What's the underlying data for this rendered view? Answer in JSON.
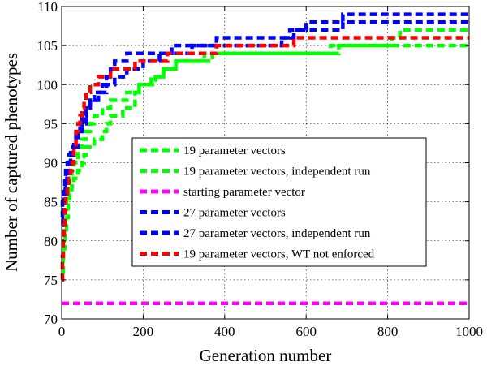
{
  "chart_data": {
    "type": "line",
    "title": "",
    "xlabel": "Generation number",
    "ylabel": "Number of captured phenotypes",
    "xlim": [
      0,
      1000
    ],
    "ylim": [
      70,
      110
    ],
    "xticks": [
      0,
      200,
      400,
      600,
      800,
      1000
    ],
    "yticks": [
      70,
      75,
      80,
      85,
      90,
      95,
      100,
      105,
      110
    ],
    "grid": true,
    "legend_position": "center-right",
    "series": [
      {
        "name": "19 parameter vectors",
        "color": "#00ff00",
        "points": [
          [
            0,
            78
          ],
          [
            3,
            80
          ],
          [
            6,
            82
          ],
          [
            9,
            84
          ],
          [
            12,
            86
          ],
          [
            16,
            87
          ],
          [
            20,
            88
          ],
          [
            25,
            89
          ],
          [
            30,
            90
          ],
          [
            40,
            92
          ],
          [
            50,
            93
          ],
          [
            60,
            94
          ],
          [
            70,
            95
          ],
          [
            80,
            96
          ],
          [
            100,
            97
          ],
          [
            120,
            98
          ],
          [
            140,
            98
          ],
          [
            160,
            99
          ],
          [
            190,
            100
          ],
          [
            220,
            101
          ],
          [
            250,
            102
          ],
          [
            280,
            103
          ],
          [
            320,
            103
          ],
          [
            350,
            104
          ],
          [
            400,
            104
          ],
          [
            500,
            104
          ],
          [
            600,
            104
          ],
          [
            650,
            104
          ],
          [
            660,
            105
          ],
          [
            800,
            105
          ],
          [
            810,
            106
          ],
          [
            830,
            107
          ],
          [
            1000,
            107
          ]
        ]
      },
      {
        "name": "19 parameter vectors, independent run",
        "color": "#00ff00",
        "points": [
          [
            0,
            76
          ],
          [
            4,
            79
          ],
          [
            8,
            81
          ],
          [
            12,
            83
          ],
          [
            16,
            85
          ],
          [
            20,
            86
          ],
          [
            25,
            87
          ],
          [
            30,
            88
          ],
          [
            40,
            89
          ],
          [
            50,
            90
          ],
          [
            55,
            91
          ],
          [
            60,
            92
          ],
          [
            80,
            93
          ],
          [
            100,
            94
          ],
          [
            110,
            95
          ],
          [
            120,
            96
          ],
          [
            140,
            96
          ],
          [
            150,
            97
          ],
          [
            170,
            97
          ],
          [
            180,
            99
          ],
          [
            190,
            100
          ],
          [
            210,
            100
          ],
          [
            230,
            101
          ],
          [
            250,
            102
          ],
          [
            280,
            103
          ],
          [
            330,
            103
          ],
          [
            370,
            104
          ],
          [
            450,
            104
          ],
          [
            530,
            104
          ],
          [
            540,
            104
          ],
          [
            670,
            104
          ],
          [
            680,
            105
          ],
          [
            1000,
            105
          ]
        ]
      },
      {
        "name": "starting parameter vector",
        "color": "#ff00ff",
        "points": [
          [
            0,
            72
          ],
          [
            1000,
            72
          ]
        ]
      },
      {
        "name": "27 parameter vectors",
        "color": "#0000ff",
        "points": [
          [
            0,
            83
          ],
          [
            2,
            85
          ],
          [
            4,
            86
          ],
          [
            6,
            87
          ],
          [
            8,
            88
          ],
          [
            10,
            89
          ],
          [
            14,
            90
          ],
          [
            18,
            91
          ],
          [
            22,
            92
          ],
          [
            30,
            93
          ],
          [
            35,
            94
          ],
          [
            45,
            95
          ],
          [
            50,
            96
          ],
          [
            60,
            97
          ],
          [
            70,
            98
          ],
          [
            80,
            99
          ],
          [
            100,
            100
          ],
          [
            110,
            101
          ],
          [
            120,
            102
          ],
          [
            130,
            103
          ],
          [
            160,
            104
          ],
          [
            250,
            104
          ],
          [
            270,
            105
          ],
          [
            360,
            105
          ],
          [
            380,
            106
          ],
          [
            530,
            106
          ],
          [
            540,
            106
          ],
          [
            570,
            107
          ],
          [
            600,
            108
          ],
          [
            680,
            108
          ],
          [
            690,
            109
          ],
          [
            1000,
            109
          ]
        ]
      },
      {
        "name": "27 parameter vectors, independent run",
        "color": "#0000ff",
        "points": [
          [
            0,
            82
          ],
          [
            3,
            84
          ],
          [
            6,
            86
          ],
          [
            9,
            87
          ],
          [
            13,
            88
          ],
          [
            17,
            89
          ],
          [
            22,
            91
          ],
          [
            30,
            92
          ],
          [
            40,
            94
          ],
          [
            50,
            95
          ],
          [
            60,
            97
          ],
          [
            70,
            98
          ],
          [
            90,
            99
          ],
          [
            110,
            100
          ],
          [
            130,
            101
          ],
          [
            160,
            102
          ],
          [
            200,
            103
          ],
          [
            240,
            104
          ],
          [
            300,
            104
          ],
          [
            320,
            105
          ],
          [
            500,
            105
          ],
          [
            540,
            106
          ],
          [
            560,
            107
          ],
          [
            680,
            107
          ],
          [
            690,
            108
          ],
          [
            1000,
            108
          ]
        ]
      },
      {
        "name": "19 parameter vectors, WT not enforced",
        "color": "#ff0000",
        "points": [
          [
            0,
            75
          ],
          [
            2,
            78
          ],
          [
            4,
            80
          ],
          [
            6,
            82
          ],
          [
            8,
            84
          ],
          [
            10,
            86
          ],
          [
            14,
            87
          ],
          [
            18,
            88
          ],
          [
            22,
            89
          ],
          [
            26,
            90
          ],
          [
            30,
            92
          ],
          [
            35,
            94
          ],
          [
            40,
            95
          ],
          [
            45,
            96
          ],
          [
            50,
            97
          ],
          [
            55,
            98
          ],
          [
            60,
            99
          ],
          [
            70,
            100
          ],
          [
            90,
            101
          ],
          [
            120,
            102
          ],
          [
            150,
            102
          ],
          [
            180,
            103
          ],
          [
            230,
            103
          ],
          [
            260,
            104
          ],
          [
            350,
            104
          ],
          [
            380,
            105
          ],
          [
            560,
            105
          ],
          [
            570,
            106
          ],
          [
            1000,
            106
          ]
        ]
      }
    ]
  }
}
